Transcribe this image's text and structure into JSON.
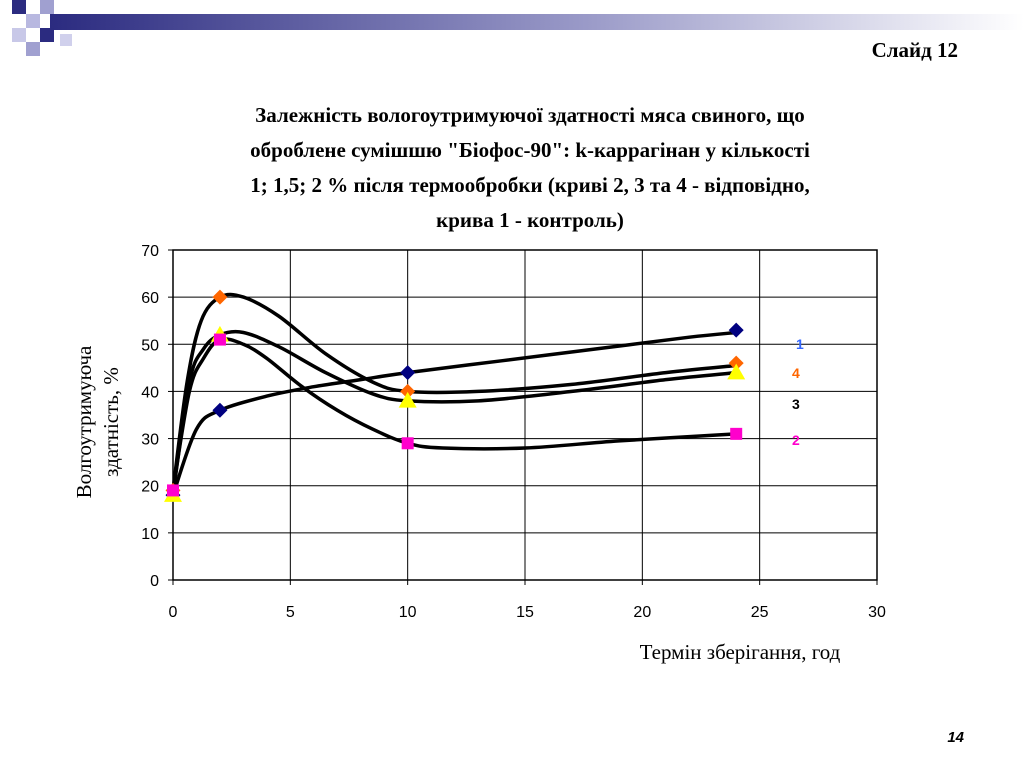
{
  "slide_label": "Слайд 12",
  "title_lines": [
    "Залежність вологоутримуючої здатності мяса свиного, що",
    "оброблене сумішшю \"Біофос-90\": k-каррагінан у кількості",
    "1; 1,5; 2 % після термообробки (криві 2, 3 та 4 - відповідно,",
    "крива 1 - контроль)"
  ],
  "page_number": "14",
  "colors": {
    "deco_dark": "#2b2b80",
    "deco_light": "#a0a0d0",
    "curve": "#000000"
  },
  "chart_data": {
    "type": "scatter",
    "xlabel": "Термін зберігання, год",
    "ylabel_lines": [
      "Волгоутримуюча",
      "здатність, %"
    ],
    "xlim": [
      0,
      30
    ],
    "ylim": [
      0,
      70
    ],
    "x_ticks": [
      "0",
      "5",
      "10",
      "15",
      "20",
      "25",
      "30"
    ],
    "y_ticks": [
      "0",
      "10",
      "20",
      "30",
      "40",
      "50",
      "60",
      "70"
    ],
    "grid": true,
    "legend_position": "right",
    "series": [
      {
        "name": "1",
        "marker": "diamond",
        "color": "#000080",
        "label_color": "#3366ff",
        "points": [
          [
            0,
            18
          ],
          [
            2,
            36
          ],
          [
            10,
            44
          ],
          [
            24,
            53
          ]
        ],
        "curve": [
          [
            0,
            18
          ],
          [
            1,
            32
          ],
          [
            2,
            36
          ],
          [
            4,
            39
          ],
          [
            6,
            41
          ],
          [
            8,
            42.5
          ],
          [
            10,
            44
          ],
          [
            14,
            46.5
          ],
          [
            18,
            49
          ],
          [
            22,
            51.5
          ],
          [
            24,
            52.5
          ]
        ]
      },
      {
        "name": "4",
        "marker": "diamond",
        "color": "#ff6600",
        "label_color": "#ff6600",
        "points": [
          [
            0,
            19
          ],
          [
            2,
            60
          ],
          [
            10,
            40
          ],
          [
            24,
            46
          ]
        ],
        "curve": [
          [
            0,
            19
          ],
          [
            0.6,
            42
          ],
          [
            1.2,
            55
          ],
          [
            2,
            60
          ],
          [
            3,
            60
          ],
          [
            4.5,
            56
          ],
          [
            6.5,
            48
          ],
          [
            8.5,
            42
          ],
          [
            10,
            40
          ],
          [
            13,
            40
          ],
          [
            17,
            41.5
          ],
          [
            21,
            44
          ],
          [
            24,
            45.5
          ]
        ]
      },
      {
        "name": "3",
        "marker": "triangle",
        "color": "#ffff00",
        "label_color": "#000000",
        "points": [
          [
            0,
            18
          ],
          [
            2,
            52
          ],
          [
            10,
            38
          ],
          [
            24,
            44
          ]
        ],
        "curve": [
          [
            0,
            18
          ],
          [
            0.7,
            42
          ],
          [
            1.3,
            49
          ],
          [
            2,
            52
          ],
          [
            3,
            52.5
          ],
          [
            4.5,
            49.5
          ],
          [
            6.5,
            44
          ],
          [
            8.5,
            39.5
          ],
          [
            10,
            38
          ],
          [
            13,
            38
          ],
          [
            17,
            40
          ],
          [
            21,
            42.5
          ],
          [
            24,
            44
          ]
        ]
      },
      {
        "name": "2",
        "marker": "square",
        "color": "#ff00cc",
        "label_color": "#ff00cc",
        "points": [
          [
            0,
            19
          ],
          [
            2,
            51
          ],
          [
            10,
            29
          ],
          [
            24,
            31
          ]
        ],
        "curve": [
          [
            0,
            19
          ],
          [
            0.7,
            40
          ],
          [
            1.3,
            47
          ],
          [
            2,
            51
          ],
          [
            3,
            50
          ],
          [
            4,
            47
          ],
          [
            5.5,
            41
          ],
          [
            7,
            36
          ],
          [
            8.5,
            32
          ],
          [
            10,
            29
          ],
          [
            11.5,
            28
          ],
          [
            15,
            28
          ],
          [
            19,
            29.5
          ],
          [
            24,
            31
          ]
        ]
      }
    ]
  }
}
